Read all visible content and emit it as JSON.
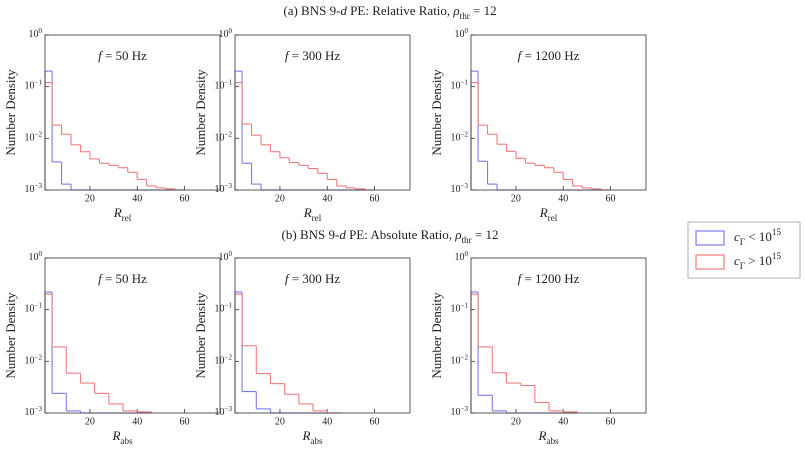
{
  "section_titles": [
    [
      {
        "t": "(a) BNS 9-"
      },
      {
        "t": "d",
        "s": "i"
      },
      {
        "t": " PE: Relative Ratio, "
      },
      {
        "t": "ρ",
        "s": "i"
      },
      {
        "t": "thr",
        "s": "sub"
      },
      {
        "t": " = 12"
      }
    ],
    [
      {
        "t": "(b) BNS 9-"
      },
      {
        "t": "d",
        "s": "i"
      },
      {
        "t": " PE: Absolute Ratio, "
      },
      {
        "t": "ρ",
        "s": "i"
      },
      {
        "t": "thr",
        "s": "sub"
      },
      {
        "t": " = 12"
      }
    ]
  ],
  "legend": [
    {
      "name": [
        {
          "t": "c",
          "s": "i"
        },
        {
          "t": "Γ",
          "s": "sub"
        },
        {
          "t": " < 10"
        },
        {
          "t": "15",
          "s": "sup"
        }
      ],
      "color": "#7b7bea"
    },
    {
      "name": [
        {
          "t": "c",
          "s": "i"
        },
        {
          "t": "Γ",
          "s": "sub"
        },
        {
          "t": " > 10"
        },
        {
          "t": "15",
          "s": "sup"
        }
      ],
      "color": "#f07c7c"
    }
  ],
  "chart_data": [
    {
      "type": "histogram",
      "title": [
        {
          "t": "f",
          "s": "i"
        },
        {
          "t": " = 50 Hz"
        }
      ],
      "xlabel": [
        {
          "t": "R",
          "s": "i"
        },
        {
          "t": "rel",
          "s": "sub"
        }
      ],
      "ylabel": "Number Density",
      "bins": [
        1,
        4,
        8,
        12,
        16,
        20,
        24,
        28,
        32,
        36,
        40,
        44,
        48,
        52,
        56,
        60
      ],
      "series": [
        {
          "values": [
            0.2,
            0.0035,
            0.0013,
            0,
            0,
            0,
            0,
            0,
            0,
            0,
            0,
            0,
            0,
            0,
            0
          ]
        },
        {
          "values": [
            0.12,
            0.018,
            0.012,
            0.0075,
            0.0055,
            0.004,
            0.0033,
            0.003,
            0.0027,
            0.0022,
            0.0016,
            0.0012,
            0.0011,
            0.00105,
            0
          ]
        }
      ],
      "xlim": [
        1,
        75
      ],
      "ylim": [
        0.001,
        1
      ],
      "log_y": true,
      "xticks": [
        20,
        40,
        60
      ],
      "yticks": [
        {
          "value": 0.001,
          "label": [
            {
              "t": "10"
            },
            {
              "t": "−3",
              "s": "sup"
            }
          ]
        },
        {
          "value": 0.01,
          "label": [
            {
              "t": "10"
            },
            {
              "t": "−2",
              "s": "sup"
            }
          ]
        },
        {
          "value": 0.1,
          "label": [
            {
              "t": "10"
            },
            {
              "t": "−1",
              "s": "sup"
            }
          ]
        },
        {
          "value": 1,
          "label": [
            {
              "t": "10"
            },
            {
              "t": "0",
              "s": "sup"
            }
          ]
        }
      ]
    },
    {
      "type": "histogram",
      "title": [
        {
          "t": "f",
          "s": "i"
        },
        {
          "t": " = 300 Hz"
        }
      ],
      "xlabel": [
        {
          "t": "R",
          "s": "i"
        },
        {
          "t": "rel",
          "s": "sub"
        }
      ],
      "ylabel": "Number Density",
      "bins": [
        1,
        4,
        8,
        12,
        16,
        20,
        24,
        28,
        32,
        36,
        40,
        44,
        48,
        52,
        56,
        60
      ],
      "series": [
        {
          "values": [
            0.2,
            0.0033,
            0.0013,
            0,
            0,
            0,
            0,
            0,
            0,
            0,
            0,
            0,
            0,
            0,
            0
          ]
        },
        {
          "values": [
            0.12,
            0.019,
            0.0115,
            0.0075,
            0.0055,
            0.0042,
            0.0034,
            0.003,
            0.0026,
            0.0021,
            0.0016,
            0.0012,
            0.0011,
            0.00105,
            0
          ]
        }
      ],
      "xlim": [
        1,
        75
      ],
      "ylim": [
        0.001,
        1
      ],
      "log_y": true,
      "xticks": [
        20,
        40,
        60
      ],
      "yticks": [
        {
          "value": 0.001,
          "label": [
            {
              "t": "10"
            },
            {
              "t": "−3",
              "s": "sup"
            }
          ]
        },
        {
          "value": 0.01,
          "label": [
            {
              "t": "10"
            },
            {
              "t": "−2",
              "s": "sup"
            }
          ]
        },
        {
          "value": 0.1,
          "label": [
            {
              "t": "10"
            },
            {
              "t": "−1",
              "s": "sup"
            }
          ]
        },
        {
          "value": 1,
          "label": [
            {
              "t": "10"
            },
            {
              "t": "0",
              "s": "sup"
            }
          ]
        }
      ]
    },
    {
      "type": "histogram",
      "title": [
        {
          "t": "f",
          "s": "i"
        },
        {
          "t": " = 1200 Hz"
        }
      ],
      "xlabel": [
        {
          "t": "R",
          "s": "i"
        },
        {
          "t": "rel",
          "s": "sub"
        }
      ],
      "ylabel": "Number Density",
      "bins": [
        1,
        4,
        8,
        12,
        16,
        20,
        24,
        28,
        32,
        36,
        40,
        44,
        48,
        52,
        56,
        60
      ],
      "series": [
        {
          "values": [
            0.2,
            0.0036,
            0.0013,
            0,
            0,
            0,
            0,
            0,
            0,
            0,
            0,
            0,
            0,
            0,
            0
          ]
        },
        {
          "values": [
            0.12,
            0.018,
            0.012,
            0.0077,
            0.0056,
            0.0041,
            0.0033,
            0.003,
            0.0027,
            0.0022,
            0.0016,
            0.0012,
            0.0011,
            0.00105,
            0
          ]
        }
      ],
      "xlim": [
        1,
        75
      ],
      "ylim": [
        0.001,
        1
      ],
      "log_y": true,
      "xticks": [
        20,
        40,
        60
      ],
      "yticks": [
        {
          "value": 0.001,
          "label": [
            {
              "t": "10"
            },
            {
              "t": "−3",
              "s": "sup"
            }
          ]
        },
        {
          "value": 0.01,
          "label": [
            {
              "t": "10"
            },
            {
              "t": "−2",
              "s": "sup"
            }
          ]
        },
        {
          "value": 0.1,
          "label": [
            {
              "t": "10"
            },
            {
              "t": "−1",
              "s": "sup"
            }
          ]
        },
        {
          "value": 1,
          "label": [
            {
              "t": "10"
            },
            {
              "t": "0",
              "s": "sup"
            }
          ]
        }
      ]
    },
    {
      "type": "histogram",
      "title": [
        {
          "t": "f",
          "s": "i"
        },
        {
          "t": " = 50 Hz"
        }
      ],
      "xlabel": [
        {
          "t": "R",
          "s": "i"
        },
        {
          "t": "abs",
          "s": "sub"
        }
      ],
      "ylabel": "Number Density",
      "bins": [
        1,
        4,
        10,
        16,
        22,
        28,
        34,
        40,
        46
      ],
      "series": [
        {
          "values": [
            0.22,
            0.0024,
            0.0011,
            0,
            0,
            0,
            0,
            0
          ]
        },
        {
          "values": [
            0.2,
            0.019,
            0.0059,
            0.0038,
            0.0024,
            0.0015,
            0.0011,
            0.00105
          ]
        }
      ],
      "xlim": [
        1,
        75
      ],
      "ylim": [
        0.001,
        1
      ],
      "log_y": true,
      "xticks": [
        20,
        40,
        60
      ],
      "yticks": [
        {
          "value": 0.001,
          "label": [
            {
              "t": "10"
            },
            {
              "t": "−3",
              "s": "sup"
            }
          ]
        },
        {
          "value": 0.01,
          "label": [
            {
              "t": "10"
            },
            {
              "t": "−2",
              "s": "sup"
            }
          ]
        },
        {
          "value": 0.1,
          "label": [
            {
              "t": "10"
            },
            {
              "t": "−1",
              "s": "sup"
            }
          ]
        },
        {
          "value": 1,
          "label": [
            {
              "t": "10"
            },
            {
              "t": "0",
              "s": "sup"
            }
          ]
        }
      ]
    },
    {
      "type": "histogram",
      "title": [
        {
          "t": "f",
          "s": "i"
        },
        {
          "t": " = 300 Hz"
        }
      ],
      "xlabel": [
        {
          "t": "R",
          "s": "i"
        },
        {
          "t": "abs",
          "s": "sub"
        }
      ],
      "ylabel": "Number Density",
      "bins": [
        1,
        4,
        10,
        16,
        22,
        28,
        34,
        40,
        46
      ],
      "series": [
        {
          "values": [
            0.22,
            0.0026,
            0.0012,
            0,
            0,
            0,
            0,
            0
          ]
        },
        {
          "values": [
            0.2,
            0.02,
            0.0058,
            0.0037,
            0.0023,
            0.0015,
            0.0011,
            0
          ]
        }
      ],
      "xlim": [
        1,
        75
      ],
      "ylim": [
        0.001,
        1
      ],
      "log_y": true,
      "xticks": [
        20,
        40,
        60
      ],
      "yticks": [
        {
          "value": 0.001,
          "label": [
            {
              "t": "10"
            },
            {
              "t": "−3",
              "s": "sup"
            }
          ]
        },
        {
          "value": 0.01,
          "label": [
            {
              "t": "10"
            },
            {
              "t": "−2",
              "s": "sup"
            }
          ]
        },
        {
          "value": 0.1,
          "label": [
            {
              "t": "10"
            },
            {
              "t": "−1",
              "s": "sup"
            }
          ]
        },
        {
          "value": 1,
          "label": [
            {
              "t": "10"
            },
            {
              "t": "0",
              "s": "sup"
            }
          ]
        }
      ]
    },
    {
      "type": "histogram",
      "title": [
        {
          "t": "f",
          "s": "i"
        },
        {
          "t": " = 1200 Hz"
        }
      ],
      "xlabel": [
        {
          "t": "R",
          "s": "i"
        },
        {
          "t": "abs",
          "s": "sub"
        }
      ],
      "ylabel": "Number Density",
      "bins": [
        1,
        4,
        10,
        16,
        22,
        28,
        34,
        40,
        46
      ],
      "series": [
        {
          "values": [
            0.22,
            0.0022,
            0.0011,
            0,
            0,
            0,
            0,
            0
          ]
        },
        {
          "values": [
            0.2,
            0.019,
            0.006,
            0.0038,
            0.0034,
            0.0016,
            0.0011,
            0.00105
          ]
        }
      ],
      "xlim": [
        1,
        75
      ],
      "ylim": [
        0.001,
        1
      ],
      "log_y": true,
      "xticks": [
        20,
        40,
        60
      ],
      "yticks": [
        {
          "value": 0.001,
          "label": [
            {
              "t": "10"
            },
            {
              "t": "−3",
              "s": "sup"
            }
          ]
        },
        {
          "value": 0.01,
          "label": [
            {
              "t": "10"
            },
            {
              "t": "−2",
              "s": "sup"
            }
          ]
        },
        {
          "value": 0.1,
          "label": [
            {
              "t": "10"
            },
            {
              "t": "−1",
              "s": "sup"
            }
          ]
        },
        {
          "value": 1,
          "label": [
            {
              "t": "10"
            },
            {
              "t": "0",
              "s": "sup"
            }
          ]
        }
      ]
    }
  ]
}
